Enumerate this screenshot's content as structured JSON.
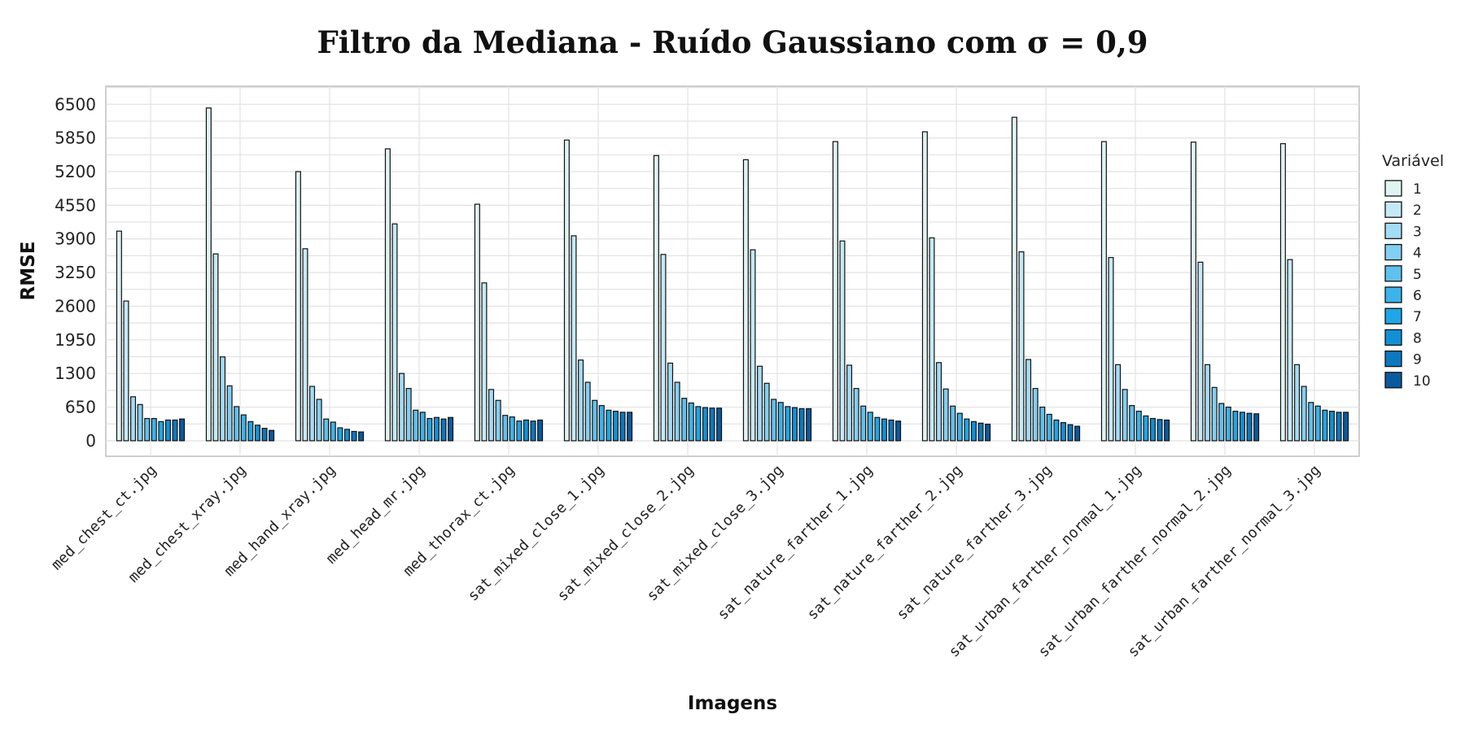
{
  "chart_data": {
    "type": "bar",
    "title": "Filtro da Mediana - Ruído Gaussiano com σ = 0,9",
    "xlabel": "Imagens",
    "ylabel": "RMSE",
    "ylim": [
      -300,
      6850
    ],
    "yticks": [
      0,
      650,
      1300,
      1950,
      2600,
      3250,
      3900,
      4550,
      5200,
      5850,
      6500
    ],
    "grid": true,
    "legend_title": "Variável",
    "legend_position": "right",
    "categories": [
      "med_chest_ct.jpg",
      "med_chest_xray.jpg",
      "med_hand_xray.jpg",
      "med_head_mr.jpg",
      "med_thorax_ct.jpg",
      "sat_mixed_close_1.jpg",
      "sat_mixed_close_2.jpg",
      "sat_mixed_close_3.jpg",
      "sat_nature_farther_1.jpg",
      "sat_nature_farther_2.jpg",
      "sat_nature_farther_3.jpg",
      "sat_urban_farther_normal_1.jpg",
      "sat_urban_farther_normal_2.jpg",
      "sat_urban_farther_normal_3.jpg"
    ],
    "series": [
      {
        "name": "1",
        "color": "#e0f3f3",
        "values": [
          4050,
          6430,
          5200,
          5640,
          4570,
          5810,
          5510,
          5430,
          5780,
          5970,
          6250,
          5780,
          5770,
          5740
        ]
      },
      {
        "name": "2",
        "color": "#c5e9f7",
        "values": [
          2700,
          3610,
          3710,
          4190,
          3050,
          3960,
          3600,
          3690,
          3860,
          3920,
          3650,
          3540,
          3450,
          3500
        ]
      },
      {
        "name": "3",
        "color": "#a3dcf5",
        "values": [
          850,
          1620,
          1050,
          1300,
          990,
          1560,
          1500,
          1440,
          1460,
          1510,
          1570,
          1470,
          1470,
          1470
        ]
      },
      {
        "name": "4",
        "color": "#82cff2",
        "values": [
          700,
          1060,
          800,
          1010,
          780,
          1130,
          1130,
          1110,
          1010,
          1000,
          1010,
          990,
          1030,
          1050
        ]
      },
      {
        "name": "5",
        "color": "#5fc1ee",
        "values": [
          430,
          660,
          420,
          590,
          490,
          780,
          820,
          800,
          670,
          670,
          650,
          680,
          720,
          740
        ]
      },
      {
        "name": "6",
        "color": "#3cb3ea",
        "values": [
          430,
          500,
          360,
          550,
          460,
          680,
          730,
          740,
          550,
          530,
          510,
          570,
          650,
          670
        ]
      },
      {
        "name": "7",
        "color": "#1ea6e6",
        "values": [
          370,
          370,
          250,
          430,
          380,
          590,
          660,
          660,
          450,
          420,
          400,
          480,
          570,
          590
        ]
      },
      {
        "name": "8",
        "color": "#1290d6",
        "values": [
          400,
          300,
          220,
          450,
          400,
          570,
          640,
          640,
          420,
          370,
          350,
          430,
          550,
          570
        ]
      },
      {
        "name": "9",
        "color": "#0c78bf",
        "values": [
          400,
          240,
          180,
          420,
          380,
          550,
          630,
          620,
          400,
          340,
          310,
          410,
          530,
          550
        ]
      },
      {
        "name": "10",
        "color": "#0a5a9e",
        "values": [
          420,
          200,
          170,
          450,
          400,
          550,
          630,
          620,
          380,
          320,
          280,
          400,
          520,
          550
        ]
      }
    ]
  }
}
